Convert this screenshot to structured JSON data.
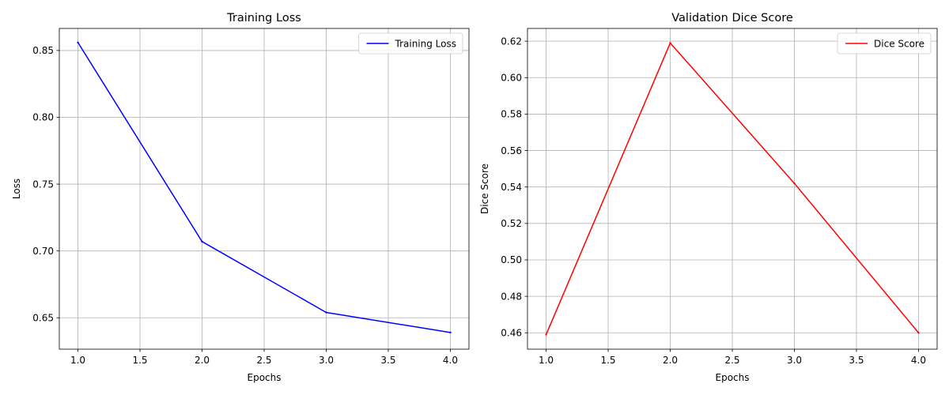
{
  "chart_data": [
    {
      "type": "line",
      "title": "Training Loss",
      "xlabel": "Epochs",
      "ylabel": "Loss",
      "xlim": [
        0.85,
        4.15
      ],
      "ylim": [
        0.6265,
        0.8665
      ],
      "xticks": [
        1.0,
        1.5,
        2.0,
        2.5,
        3.0,
        3.5,
        4.0
      ],
      "xtick_labels": [
        "1.0",
        "1.5",
        "2.0",
        "2.5",
        "3.0",
        "3.5",
        "4.0"
      ],
      "yticks": [
        0.65,
        0.7,
        0.75,
        0.8,
        0.85
      ],
      "ytick_labels": [
        "0.65",
        "0.70",
        "0.75",
        "0.80",
        "0.85"
      ],
      "grid": true,
      "legend_position": "top-right",
      "series": [
        {
          "name": "Training Loss",
          "color": "#0000ff",
          "x": [
            1,
            2,
            3,
            4
          ],
          "values": [
            0.856,
            0.707,
            0.654,
            0.639
          ]
        }
      ]
    },
    {
      "type": "line",
      "title": "Validation Dice Score",
      "xlabel": "Epochs",
      "ylabel": "Dice Score",
      "xlim": [
        0.85,
        4.15
      ],
      "ylim": [
        0.451,
        0.627
      ],
      "xticks": [
        1.0,
        1.5,
        2.0,
        2.5,
        3.0,
        3.5,
        4.0
      ],
      "xtick_labels": [
        "1.0",
        "1.5",
        "2.0",
        "2.5",
        "3.0",
        "3.5",
        "4.0"
      ],
      "yticks": [
        0.46,
        0.48,
        0.5,
        0.52,
        0.54,
        0.56,
        0.58,
        0.6,
        0.62
      ],
      "ytick_labels": [
        "0.46",
        "0.48",
        "0.50",
        "0.52",
        "0.54",
        "0.56",
        "0.58",
        "0.60",
        "0.62"
      ],
      "grid": true,
      "legend_position": "top-right",
      "series": [
        {
          "name": "Dice Score",
          "color": "#ff0000",
          "x": [
            1,
            2,
            3,
            4
          ],
          "values": [
            0.459,
            0.619,
            0.542,
            0.46
          ]
        }
      ]
    }
  ]
}
